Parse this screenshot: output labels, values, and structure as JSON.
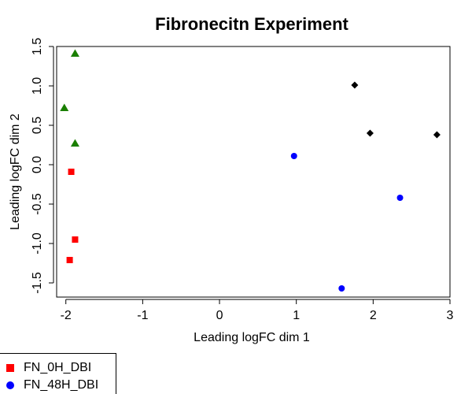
{
  "chart_data": {
    "type": "scatter",
    "title": "Fibronecitn Experiment",
    "xlabel": "Leading logFC dim 1",
    "ylabel": "Leading logFC dim 2",
    "xlim": [
      -2.12,
      3.0
    ],
    "ylim": [
      -1.68,
      1.5
    ],
    "xticks": [
      -2,
      -1,
      0,
      1,
      2,
      3
    ],
    "xtick_labels": [
      "-2",
      "-1",
      "0",
      "1",
      "2",
      "3"
    ],
    "yticks": [
      -1.5,
      -1.0,
      -0.5,
      0.0,
      0.5,
      1.0,
      1.5
    ],
    "ytick_labels": [
      "-1.5",
      "-1.0",
      "-0.5",
      "0.0",
      "0.5",
      "1.0",
      "1.5"
    ],
    "grid": false,
    "legend_position": "bottom-left",
    "series": [
      {
        "name": "FN_0H_DBI",
        "marker": "square",
        "color": "#ff0000",
        "x": [
          -1.93,
          -1.88,
          -1.95
        ],
        "y": [
          -0.09,
          -0.95,
          -1.21
        ]
      },
      {
        "name": "FN_48H_DBI",
        "marker": "circle",
        "color": "#0000ff",
        "x": [
          0.97,
          2.35,
          1.59
        ],
        "y": [
          0.11,
          -0.42,
          -1.57
        ]
      },
      {
        "name": "",
        "marker": "triangle",
        "color": "#1a7f00",
        "x": [
          -1.88,
          -2.02,
          -1.88
        ],
        "y": [
          1.41,
          0.72,
          0.27
        ]
      },
      {
        "name": "",
        "marker": "diamond",
        "color": "#000000",
        "x": [
          1.76,
          1.96,
          2.83
        ],
        "y": [
          1.01,
          0.4,
          0.38
        ]
      }
    ]
  },
  "legend": {
    "items": [
      {
        "label": "FN_0H_DBI",
        "color": "#ff0000",
        "shape": "square"
      },
      {
        "label": "FN_48H_DBI",
        "color": "#0000ff",
        "shape": "circle"
      }
    ]
  }
}
